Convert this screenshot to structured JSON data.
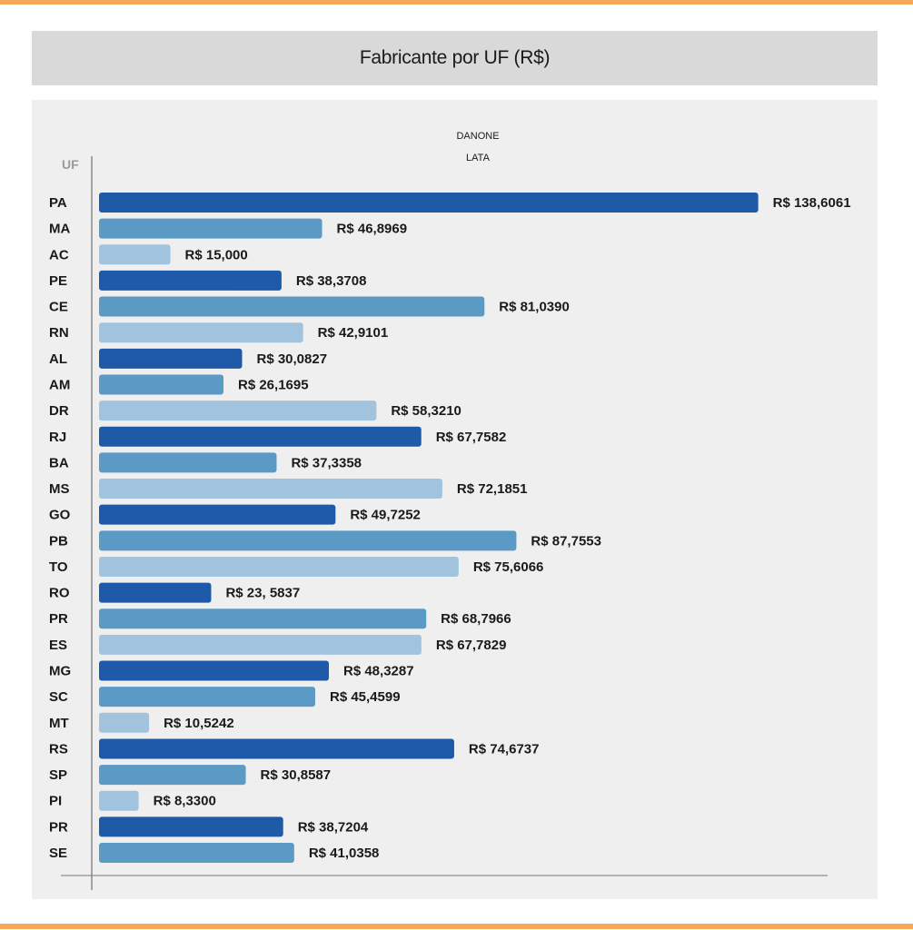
{
  "title": "Fabricante por UF (R$)",
  "chart_data": {
    "type": "bar",
    "orientation": "horizontal",
    "title": "Fabricante por UF (R$)",
    "header_lines": [
      "DANONE",
      "LATA"
    ],
    "axis_title": "UF",
    "xlim": [
      0,
      140
    ],
    "grid": false,
    "legend": "none",
    "colors": [
      "#1f5aa8",
      "#5b9ac4",
      "#a1c3dd"
    ],
    "categories": [
      "PA",
      "MA",
      "AC",
      "PE",
      "CE",
      "RN",
      "AL",
      "AM",
      "DR",
      "RJ",
      "BA",
      "MS",
      "GO",
      "PB",
      "TO",
      "RO",
      "PR",
      "ES",
      "MG",
      "SC",
      "MT",
      "RS",
      "SP",
      "PI",
      "PR",
      "SE"
    ],
    "values": [
      138.6061,
      46.8969,
      15.0,
      38.3708,
      81.039,
      42.9101,
      30.0827,
      26.1695,
      58.321,
      67.7582,
      37.3358,
      72.1851,
      49.7252,
      87.7553,
      75.6066,
      23.5837,
      68.7966,
      67.7829,
      48.3287,
      45.4599,
      10.5242,
      74.6737,
      30.8587,
      8.33,
      38.7204,
      41.0358
    ],
    "value_labels": [
      "R$ 138,6061",
      "R$ 46,8969",
      "R$ 15,000",
      "R$ 38,3708",
      "R$ 81,0390",
      "R$ 42,9101",
      "R$ 30,0827",
      "R$ 26,1695",
      "R$ 58,3210",
      "R$ 67,7582",
      "R$ 37,3358",
      "R$ 72,1851",
      "R$ 49,7252",
      "R$ 87,7553",
      "R$ 75,6066",
      "R$ 23, 5837",
      "R$ 68,7966",
      "R$ 67,7829",
      "R$ 48,3287",
      "R$ 45,4599",
      "R$ 10,5242",
      "R$ 74,6737",
      "R$ 30,8587",
      "R$ 8,3300",
      "R$ 38,7204",
      "R$ 41,0358"
    ]
  }
}
